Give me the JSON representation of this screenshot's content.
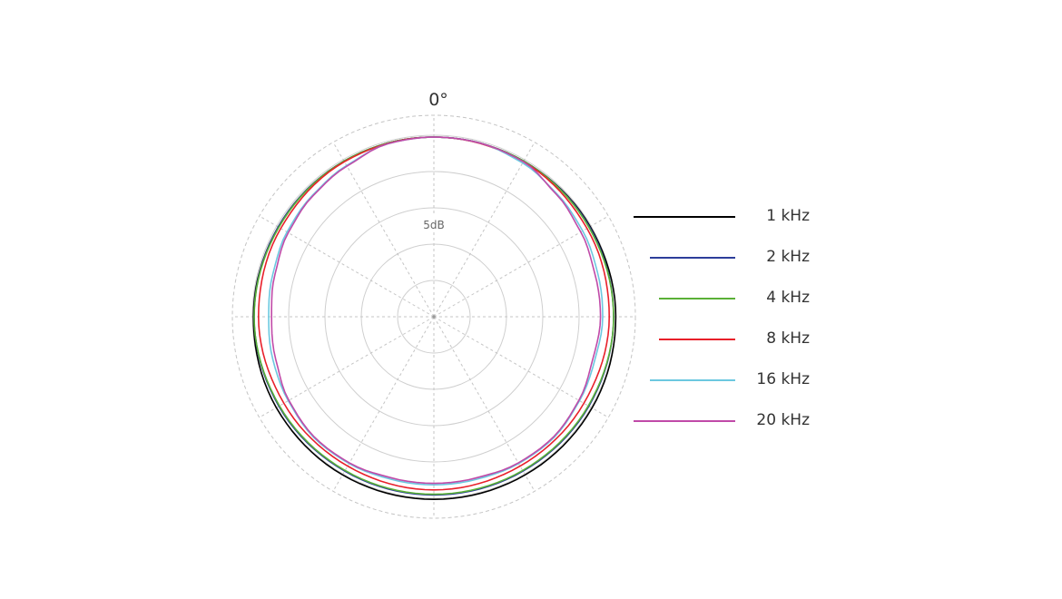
{
  "chart_data": {
    "type": "polar",
    "angle_label": "0°",
    "ring_label": "5dB",
    "grid": true,
    "legend_position": "right",
    "series": [
      {
        "name": "1 kHz",
        "color": "#000000",
        "angles": [
          0,
          30,
          60,
          90,
          120,
          150,
          180,
          210,
          240,
          270,
          300,
          330
        ],
        "values_db": [
          0,
          0,
          0.1,
          0.3,
          0.4,
          0.4,
          0.4,
          0.4,
          0.3,
          0.1,
          0,
          0
        ]
      },
      {
        "name": "2 kHz",
        "color": "#2d3e9a",
        "angles": [
          0,
          30,
          60,
          90,
          120,
          150,
          180,
          210,
          240,
          270,
          300,
          330
        ],
        "values_db": [
          0,
          0,
          0,
          0,
          -0.1,
          -0.2,
          -0.2,
          -0.2,
          -0.1,
          0,
          0,
          0
        ]
      },
      {
        "name": "4 kHz",
        "color": "#5ab036",
        "angles": [
          0,
          30,
          60,
          90,
          120,
          150,
          180,
          210,
          240,
          270,
          300,
          330
        ],
        "values_db": [
          0,
          0,
          -0.1,
          0,
          -0.2,
          -0.3,
          -0.3,
          -0.3,
          -0.2,
          0,
          -0.1,
          0
        ]
      },
      {
        "name": "8 kHz",
        "color": "#e8202a",
        "angles": [
          0,
          30,
          60,
          90,
          120,
          150,
          180,
          210,
          240,
          270,
          300,
          330
        ],
        "values_db": [
          0,
          -0.1,
          -0.4,
          -0.6,
          -0.9,
          -1.0,
          -0.9,
          -1.0,
          -0.9,
          -0.6,
          -0.4,
          -0.1
        ]
      },
      {
        "name": "16 kHz",
        "color": "#6cc8e0",
        "angles": [
          0,
          15,
          30,
          45,
          60,
          75,
          90,
          105,
          120,
          135,
          150,
          165,
          180,
          195,
          210,
          225,
          240,
          255,
          270,
          285,
          300,
          315,
          330,
          345
        ],
        "values_db": [
          0,
          0,
          -0.3,
          -0.8,
          -1.1,
          -1.4,
          -1.5,
          -1.8,
          -1.6,
          -1.3,
          -1.4,
          -1.6,
          -1.6,
          -1.6,
          -1.4,
          -1.3,
          -1.6,
          -1.8,
          -2.0,
          -1.8,
          -1.4,
          -1.1,
          -0.7,
          -0.1
        ]
      },
      {
        "name": "20 kHz",
        "color": "#c04aa8",
        "angles": [
          0,
          15,
          30,
          45,
          60,
          75,
          90,
          105,
          120,
          135,
          150,
          165,
          180,
          195,
          210,
          225,
          240,
          255,
          270,
          285,
          300,
          315,
          330,
          345
        ],
        "values_db": [
          0,
          0,
          -0.1,
          -0.9,
          -1.4,
          -1.8,
          -1.8,
          -2.1,
          -1.7,
          -1.4,
          -1.5,
          -1.8,
          -1.8,
          -1.8,
          -1.5,
          -1.4,
          -1.7,
          -2.2,
          -2.4,
          -2.1,
          -1.6,
          -1.2,
          -0.8,
          -0.1
        ]
      }
    ]
  }
}
